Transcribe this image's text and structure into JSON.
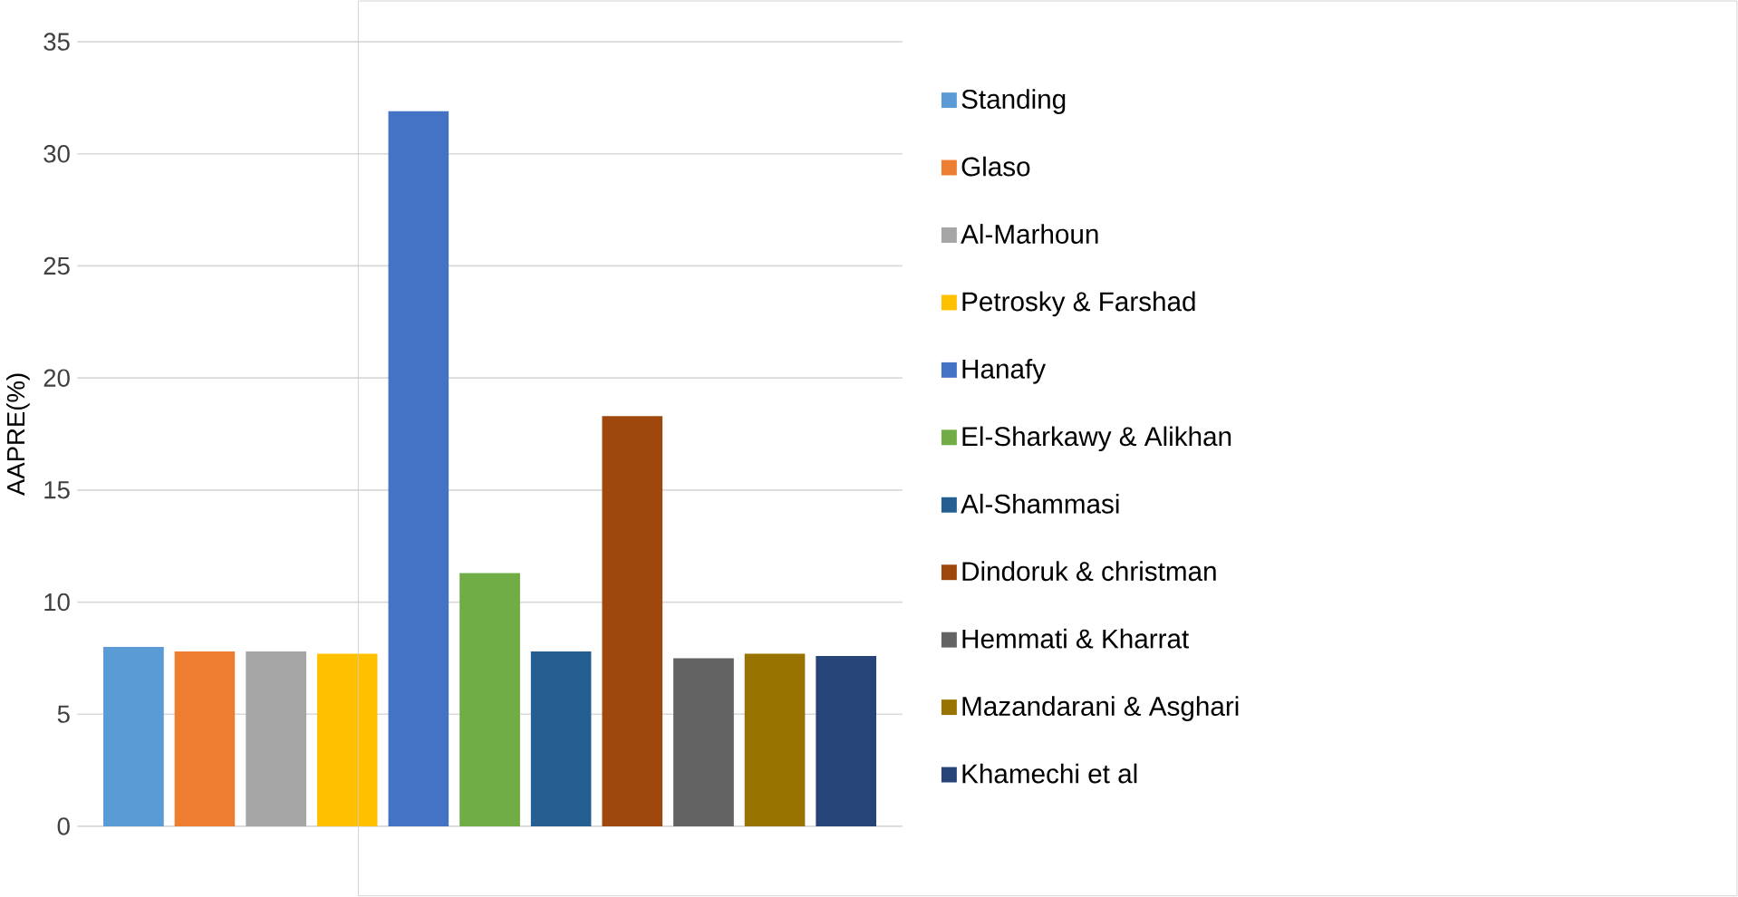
{
  "chart_data": {
    "type": "bar",
    "ylabel": "AAPRE(%)",
    "categories": [
      null
    ],
    "series": [
      {
        "name": "Standing",
        "color": "#5b9bd5",
        "values": [
          8.0
        ]
      },
      {
        "name": "Glaso",
        "color": "#ed7d31",
        "values": [
          7.8
        ]
      },
      {
        "name": "Al-Marhoun",
        "color": "#a5a5a5",
        "values": [
          7.8
        ]
      },
      {
        "name": "Petrosky & Farshad",
        "color": "#ffc000",
        "values": [
          7.7
        ]
      },
      {
        "name": "Hanafy",
        "color": "#4472c4",
        "values": [
          31.9
        ]
      },
      {
        "name": "El-Sharkawy & Alikhan",
        "color": "#70ad47",
        "values": [
          11.3
        ]
      },
      {
        "name": "Al-Shammasi",
        "color": "#255e91",
        "values": [
          7.8
        ]
      },
      {
        "name": "Dindoruk & christman",
        "color": "#9e480e",
        "values": [
          18.3
        ]
      },
      {
        "name": "Hemmati & Kharrat",
        "color": "#636363",
        "values": [
          7.5
        ]
      },
      {
        "name": "Mazandarani & Asghari",
        "color": "#997300",
        "values": [
          7.7
        ]
      },
      {
        "name": "Khamechi et al",
        "color": "#264478",
        "values": [
          7.6
        ]
      }
    ],
    "ylim": [
      0,
      35
    ],
    "yticks": [
      0,
      5,
      10,
      15,
      20,
      25,
      30,
      35
    ],
    "grid": "y",
    "legend": "right",
    "tick_labels": "y"
  }
}
